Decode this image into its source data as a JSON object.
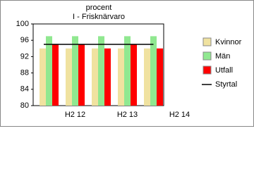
{
  "chart_data": {
    "type": "bar",
    "title": "procent",
    "subtitle": "I - Frisknärvaro",
    "categories": [
      null,
      "H2 12",
      null,
      "H2 13",
      null,
      "H2 14"
    ],
    "series": [
      {
        "name": "Kvinnor",
        "color": "#f0e2a0",
        "values": [
          94,
          94,
          94,
          94,
          94,
          null
        ]
      },
      {
        "name": "Män",
        "color": "#90e890",
        "values": [
          97,
          97,
          97,
          97,
          97,
          null
        ]
      },
      {
        "name": "Utfall",
        "color": "#ff0000",
        "values": [
          95,
          95,
          94,
          95,
          94,
          null
        ]
      },
      {
        "name": "Styrtal",
        "type": "line",
        "color": "#000000",
        "values": [
          95,
          95,
          95,
          95,
          95,
          null
        ]
      }
    ],
    "ylim": [
      80,
      100
    ],
    "yticks": [
      80,
      84,
      88,
      92,
      96,
      100
    ],
    "grid": false,
    "legend": "right"
  }
}
